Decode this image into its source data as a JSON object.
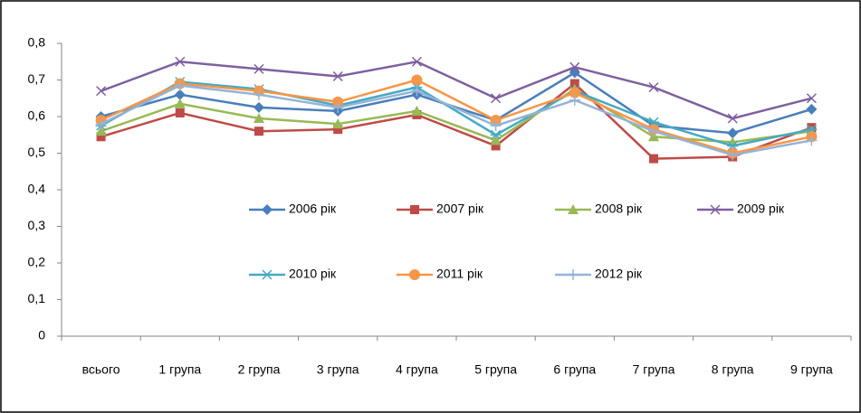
{
  "chart_data": {
    "type": "line",
    "categories": [
      "всього",
      "1 група",
      "2 група",
      "3 група",
      "4 група",
      "5 група",
      "6 група",
      "7 група",
      "8 група",
      "9 група"
    ],
    "series": [
      {
        "name": "2006 рік",
        "color": "#4a7ebb",
        "marker": "diamond",
        "values": [
          0.6,
          0.66,
          0.625,
          0.615,
          0.66,
          0.59,
          0.72,
          0.575,
          0.555,
          0.62
        ]
      },
      {
        "name": "2007 рік",
        "color": "#be4b48",
        "marker": "square",
        "values": [
          0.545,
          0.61,
          0.56,
          0.565,
          0.605,
          0.52,
          0.69,
          0.485,
          0.49,
          0.57
        ]
      },
      {
        "name": "2008 рік",
        "color": "#98b954",
        "marker": "triangle",
        "values": [
          0.56,
          0.635,
          0.595,
          0.58,
          0.615,
          0.535,
          0.675,
          0.545,
          0.53,
          0.56
        ]
      },
      {
        "name": "2009 рік",
        "color": "#7d60a0",
        "marker": "x",
        "values": [
          0.67,
          0.75,
          0.73,
          0.71,
          0.75,
          0.65,
          0.735,
          0.68,
          0.595,
          0.65
        ]
      },
      {
        "name": "2010 рік",
        "color": "#46aac5",
        "marker": "star",
        "values": [
          0.575,
          0.695,
          0.675,
          0.63,
          0.68,
          0.55,
          0.67,
          0.585,
          0.52,
          0.565
        ]
      },
      {
        "name": "2011 рік",
        "color": "#f79646",
        "marker": "circle",
        "values": [
          0.59,
          0.69,
          0.67,
          0.64,
          0.7,
          0.59,
          0.665,
          0.565,
          0.5,
          0.545
        ]
      },
      {
        "name": "2012 рік",
        "color": "#95b3d7",
        "marker": "plus",
        "values": [
          0.58,
          0.685,
          0.66,
          0.625,
          0.67,
          0.575,
          0.645,
          0.56,
          0.495,
          0.535
        ]
      }
    ],
    "ylim": [
      0,
      0.8
    ],
    "yticks": [
      0,
      {
        "value": 0.1,
        "label": "0,1"
      },
      {
        "value": 0.2,
        "label": "0,2"
      },
      {
        "value": 0.3,
        "label": "0,3"
      },
      {
        "value": 0.4,
        "label": "0,4"
      },
      {
        "value": 0.5,
        "label": "0,5"
      },
      {
        "value": 0.6,
        "label": "0,6"
      },
      {
        "value": 0.7,
        "label": "0,7"
      },
      {
        "value": 0.8,
        "label": "0,8"
      }
    ],
    "grid": false
  }
}
